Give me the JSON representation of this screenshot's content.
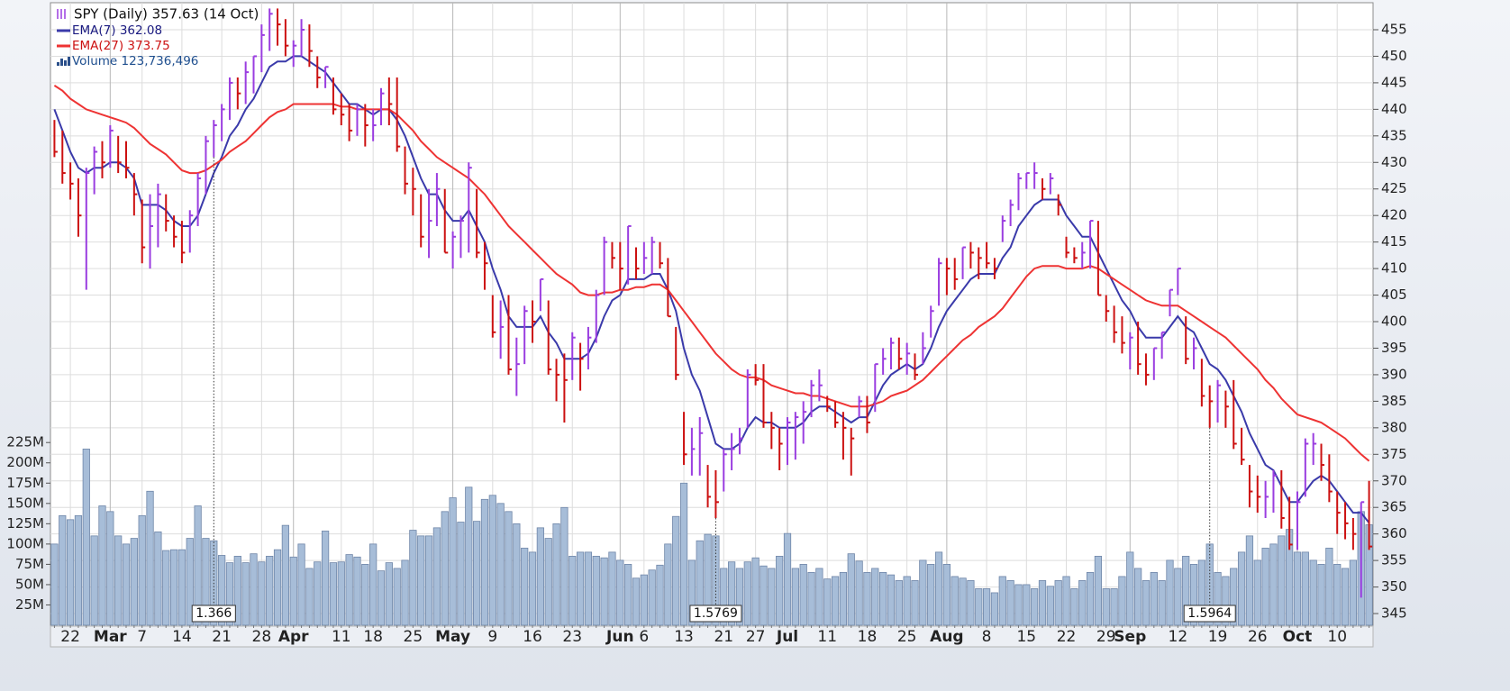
{
  "chart_data": {
    "type": "ohlc",
    "categories": [
      null,
      null,
      "22",
      null,
      null,
      null,
      null,
      "Mar",
      null,
      null,
      null,
      "7",
      null,
      null,
      null,
      null,
      "14",
      null,
      null,
      null,
      null,
      "21",
      null,
      null,
      null,
      null,
      "28",
      null,
      null,
      null,
      "Apr",
      null,
      null,
      null,
      null,
      null,
      "11",
      null,
      null,
      null,
      "18",
      null,
      null,
      null,
      null,
      "25",
      null,
      null,
      null,
      null,
      "May",
      null,
      null,
      null,
      null,
      "9",
      null,
      null,
      null,
      null,
      "16",
      null,
      null,
      null,
      null,
      "23",
      null,
      null,
      null,
      null,
      null,
      "Jun",
      null,
      null,
      "6",
      null,
      null,
      null,
      null,
      "13",
      null,
      null,
      null,
      null,
      "21",
      null,
      null,
      null,
      "27",
      null,
      null,
      null,
      "Jul",
      null,
      null,
      null,
      null,
      "11",
      null,
      null,
      null,
      null,
      "18",
      null,
      null,
      null,
      null,
      "25",
      null,
      null,
      null,
      null,
      "Aug",
      null,
      null,
      null,
      null,
      "8",
      null,
      null,
      null,
      null,
      "15",
      null,
      null,
      null,
      null,
      "22",
      null,
      null,
      null,
      null,
      "29",
      null,
      null,
      "Sep",
      null,
      null,
      null,
      null,
      null,
      "12",
      null,
      null,
      null,
      null,
      "19",
      null,
      null,
      null,
      null,
      "26",
      null,
      null,
      null,
      null,
      "Oct",
      null,
      null,
      null,
      null,
      "10",
      null,
      null,
      null,
      null
    ],
    "series": [
      {
        "name": "SPY (Daily) 357.63 (14 Oct)",
        "up_color": "#9a3de0",
        "down_color": "#cc1111",
        "high": [
          438,
          436,
          430,
          427,
          429,
          433,
          434,
          437,
          435,
          434,
          428,
          423,
          424,
          426,
          424,
          420,
          419,
          421,
          428,
          435,
          438,
          441,
          446,
          446,
          449,
          450,
          456,
          459,
          459,
          457,
          453,
          457,
          456,
          450,
          448,
          446,
          443,
          441,
          441,
          441,
          440,
          444,
          446,
          446,
          433,
          429,
          424,
          425,
          428,
          425,
          417,
          420,
          430,
          425,
          415,
          405,
          404,
          405,
          397,
          403,
          404,
          408,
          404,
          393,
          394,
          398,
          396,
          399,
          406,
          416,
          415,
          415,
          418,
          414,
          415,
          416,
          415,
          412,
          399,
          383,
          380,
          382,
          373,
          372,
          376,
          379,
          380,
          391,
          392,
          392,
          383,
          380,
          382,
          383,
          385,
          389,
          391,
          386,
          385,
          383,
          380,
          386,
          386,
          392,
          395,
          397,
          397,
          396,
          394,
          398,
          403,
          412,
          412,
          412,
          414,
          415,
          414,
          415,
          412,
          420,
          423,
          428,
          428,
          430,
          427,
          428,
          424,
          416,
          414,
          415,
          419,
          419,
          405,
          403,
          401,
          398,
          400,
          394,
          395,
          398,
          406,
          410,
          401,
          397,
          393,
          388,
          389,
          387,
          389,
          380,
          373,
          371,
          370,
          372,
          372,
          367,
          368,
          378,
          379,
          377,
          375,
          368,
          366,
          363,
          366,
          370
        ],
        "low": [
          431,
          426,
          423,
          416,
          406,
          424,
          427,
          429,
          428,
          427,
          420,
          411,
          410,
          414,
          417,
          414,
          411,
          413,
          418,
          424,
          431,
          434,
          438,
          440,
          441,
          443,
          447,
          451,
          452,
          450,
          448,
          450,
          448,
          444,
          444,
          439,
          437,
          434,
          435,
          433,
          434,
          437,
          437,
          432,
          424,
          420,
          414,
          412,
          418,
          413,
          410,
          412,
          413,
          412,
          406,
          397,
          393,
          390,
          386,
          392,
          396,
          402,
          390,
          385,
          381,
          389,
          387,
          391,
          396,
          405,
          410,
          406,
          407,
          408,
          409,
          409,
          410,
          401,
          389,
          373,
          371,
          371,
          365,
          363,
          368,
          372,
          375,
          380,
          388,
          380,
          376,
          372,
          373,
          374,
          377,
          382,
          385,
          383,
          380,
          374,
          371,
          382,
          379,
          383,
          390,
          391,
          391,
          390,
          389,
          392,
          397,
          403,
          405,
          406,
          408,
          410,
          408,
          410,
          408,
          415,
          418,
          421,
          425,
          425,
          423,
          424,
          420,
          412,
          411,
          410,
          410,
          405,
          400,
          396,
          394,
          391,
          390,
          388,
          389,
          393,
          401,
          405,
          392,
          391,
          384,
          380,
          381,
          380,
          376,
          373,
          365,
          364,
          363,
          364,
          361,
          357,
          357,
          367,
          373,
          370,
          366,
          360,
          359,
          357,
          348,
          357
        ],
        "close": [
          432,
          428,
          426,
          420,
          428,
          432,
          430,
          436,
          430,
          429,
          424,
          414,
          418,
          424,
          419,
          416,
          413,
          420,
          427,
          434,
          437,
          440,
          445,
          443,
          447,
          450,
          454,
          458,
          456,
          452,
          452,
          455,
          451,
          446,
          448,
          440,
          439,
          436,
          440,
          437,
          437,
          443,
          441,
          433,
          426,
          425,
          416,
          419,
          425,
          413,
          416,
          419,
          429,
          413,
          411,
          398,
          399,
          391,
          392,
          402,
          400,
          408,
          391,
          390,
          389,
          397,
          393,
          397,
          405,
          415,
          412,
          410,
          418,
          410,
          412,
          415,
          411,
          401,
          390,
          375,
          376,
          379,
          367,
          366,
          375,
          376,
          378,
          390,
          389,
          381,
          380,
          377,
          381,
          382,
          383,
          388,
          388,
          384,
          381,
          380,
          378,
          385,
          381,
          392,
          393,
          396,
          393,
          394,
          390,
          395,
          402,
          411,
          410,
          408,
          414,
          413,
          412,
          411,
          410,
          419,
          422,
          427,
          428,
          428,
          425,
          427,
          422,
          413,
          412,
          413,
          419,
          405,
          402,
          398,
          396,
          397,
          392,
          390,
          395,
          398,
          406,
          410,
          393,
          395,
          386,
          385,
          388,
          384,
          377,
          374,
          368,
          367,
          367,
          371,
          363,
          358,
          366,
          377,
          377,
          373,
          368,
          364,
          362,
          360,
          366,
          357.63
        ]
      },
      {
        "name": "EMA(7) 362.08",
        "color": "#3a3aaa",
        "values": [
          440,
          436,
          432,
          429,
          428,
          429,
          429,
          430,
          430,
          429,
          427,
          422,
          422,
          422,
          421,
          419,
          418,
          418,
          420,
          424,
          428,
          431,
          435,
          437,
          440,
          442,
          445,
          448,
          449,
          449,
          450,
          450,
          449,
          448,
          447,
          445,
          443,
          441,
          441,
          440,
          439,
          440,
          440,
          438,
          435,
          431,
          427,
          424,
          424,
          421,
          419,
          419,
          421,
          418,
          415,
          410,
          406,
          401,
          399,
          399,
          399,
          401,
          398,
          396,
          393,
          393,
          393,
          394,
          397,
          401,
          404,
          405,
          408,
          408,
          408,
          409,
          409,
          406,
          402,
          395,
          390,
          387,
          382,
          377,
          376,
          376,
          377,
          380,
          382,
          381,
          381,
          380,
          380,
          380,
          381,
          383,
          384,
          384,
          383,
          382,
          381,
          382,
          382,
          385,
          388,
          390,
          391,
          392,
          391,
          392,
          395,
          399,
          402,
          404,
          406,
          408,
          409,
          409,
          409,
          412,
          414,
          418,
          420,
          422,
          423,
          423,
          423,
          420,
          418,
          416,
          416,
          413,
          410,
          407,
          404,
          402,
          399,
          397,
          397,
          397,
          399,
          401,
          399,
          398,
          395,
          392,
          391,
          389,
          386,
          383,
          379,
          376,
          373,
          372,
          369,
          366,
          366,
          368,
          370,
          371,
          370,
          368,
          366,
          364,
          364,
          362.08
        ]
      },
      {
        "name": "EMA(27) 373.75",
        "color": "#ee3333",
        "values": [
          444.5,
          443.5,
          442,
          441,
          440,
          439.5,
          439,
          438.5,
          438,
          437.5,
          436.5,
          435,
          433.5,
          432.5,
          431.5,
          430,
          428.5,
          428,
          428,
          428.5,
          429.5,
          430.5,
          432,
          433,
          434,
          435.5,
          437,
          438.5,
          439.5,
          440,
          441,
          441,
          441,
          441,
          441,
          441,
          440.5,
          440.5,
          440,
          440,
          440,
          440,
          440,
          439,
          437.5,
          436,
          434,
          432.5,
          431,
          430,
          429,
          428,
          427,
          425.5,
          424,
          422,
          420,
          418,
          416.5,
          415,
          413.5,
          412,
          410.5,
          409,
          408,
          407,
          405.5,
          405,
          405,
          405.5,
          405.5,
          406,
          406,
          406.5,
          406.5,
          407,
          407,
          406,
          404,
          402,
          400,
          398,
          396,
          394,
          392.5,
          391,
          390,
          389.5,
          389.5,
          389,
          388,
          387.5,
          387,
          386.5,
          386.5,
          386,
          386,
          385.5,
          385,
          384.5,
          384,
          384,
          384,
          384.5,
          385,
          386,
          386.5,
          387,
          388,
          389,
          390.5,
          392,
          393.5,
          395,
          396.5,
          397.5,
          399,
          400,
          401,
          402.5,
          404.5,
          406.5,
          408.5,
          410,
          410.5,
          410.5,
          410.5,
          410,
          410,
          410,
          410.5,
          410,
          409,
          408,
          407,
          406,
          405,
          404,
          403.5,
          403,
          403,
          403,
          402,
          401,
          400,
          399,
          398,
          397,
          395.5,
          394,
          392.5,
          391,
          389,
          387.5,
          385.5,
          384,
          382.5,
          382,
          381.5,
          381,
          380,
          379,
          378,
          376.5,
          375,
          373.75
        ]
      },
      {
        "name": "Volume 123,736,496",
        "color": "#a7bdd8",
        "axis": "y2",
        "values": [
          100,
          135,
          130,
          135,
          217,
          110,
          147,
          140,
          110,
          100,
          107,
          135,
          165,
          115,
          92,
          93,
          93,
          107,
          147,
          107,
          104,
          86,
          77,
          85,
          77,
          88,
          78,
          85,
          93,
          123,
          84,
          100,
          70,
          78,
          116,
          77,
          78,
          87,
          84,
          75,
          100,
          67,
          77,
          70,
          80,
          117,
          110,
          110,
          120,
          140,
          157,
          127,
          170,
          128,
          155,
          160,
          150,
          140,
          125,
          95,
          90,
          120,
          107,
          125,
          145,
          85,
          90,
          90,
          85,
          83,
          90,
          80,
          75,
          58,
          62,
          68,
          74,
          100,
          134,
          175,
          80,
          104,
          112,
          110,
          70,
          78,
          70,
          78,
          83,
          73,
          70,
          85,
          113,
          70,
          75,
          65,
          70,
          57,
          60,
          65,
          88,
          79,
          65,
          70,
          65,
          62,
          55,
          60,
          55,
          80,
          75,
          90,
          75,
          60,
          58,
          55,
          45,
          45,
          40,
          60,
          55,
          50,
          50,
          45,
          55,
          48,
          55,
          60,
          45,
          55,
          65,
          85,
          45,
          45,
          60,
          90,
          70,
          55,
          65,
          55,
          80,
          70,
          85,
          75,
          80,
          100,
          65,
          60,
          70,
          90,
          110,
          80,
          95,
          100,
          110,
          118,
          90,
          90,
          80,
          75,
          95,
          75,
          70,
          80,
          140,
          123.74
        ]
      }
    ],
    "ylim": [
      342.8,
      460.6
    ],
    "yticks": [
      345,
      350,
      355,
      360,
      365,
      370,
      375,
      380,
      385,
      390,
      395,
      400,
      405,
      410,
      415,
      420,
      425,
      430,
      435,
      440,
      445,
      450,
      455
    ],
    "y2lim": [
      0,
      770
    ],
    "y2ticks": [
      {
        "value": 25,
        "label": "25M"
      },
      {
        "value": 50,
        "label": "50M"
      },
      {
        "value": 75,
        "label": "75M"
      },
      {
        "value": 100,
        "label": "100M"
      },
      {
        "value": 125,
        "label": "125M"
      },
      {
        "value": 150,
        "label": "150M"
      },
      {
        "value": 175,
        "label": "175M"
      },
      {
        "value": 200,
        "label": "200M"
      },
      {
        "value": 225,
        "label": "225M"
      }
    ],
    "grid": true,
    "legend": "top-left",
    "annotations": [
      {
        "index": 20,
        "value": 1.366
      },
      {
        "index": 83,
        "value": 1.5769
      },
      {
        "index": 145,
        "value": 1.5964
      }
    ]
  }
}
